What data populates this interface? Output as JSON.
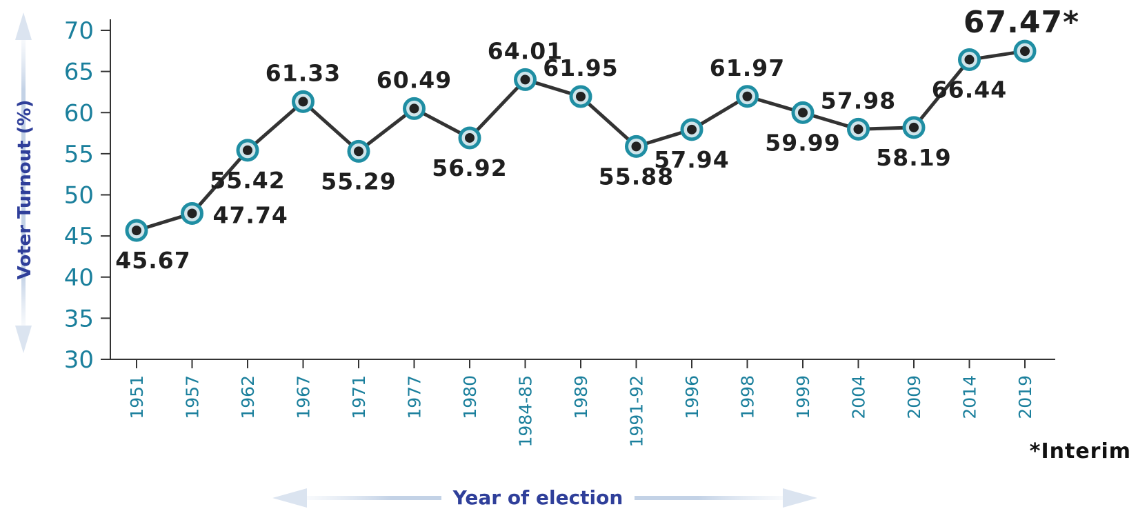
{
  "chart_data": {
    "type": "line",
    "categories": [
      "1951",
      "1957",
      "1962",
      "1967",
      "1971",
      "1977",
      "1980",
      "1984-85",
      "1989",
      "1991-92",
      "1996",
      "1998",
      "1999",
      "2004",
      "2009",
      "2014",
      "2019"
    ],
    "values": [
      45.67,
      47.74,
      55.42,
      61.33,
      55.29,
      60.49,
      56.92,
      64.01,
      61.95,
      55.88,
      57.94,
      61.97,
      59.99,
      57.98,
      58.19,
      66.44,
      67.47
    ],
    "labels": [
      "45.67",
      "47.74",
      "55.42",
      "61.33",
      "55.29",
      "60.49",
      "56.92",
      "64.01",
      "61.95",
      "55.88",
      "57.94",
      "61.97",
      "59.99",
      "57.98",
      "58.19",
      "66.44",
      "67.47*"
    ],
    "label_positions": [
      "below",
      "right",
      "below",
      "above",
      "below",
      "above",
      "below",
      "above",
      "above",
      "below",
      "below",
      "above",
      "below",
      "above",
      "below",
      "below",
      "above"
    ],
    "yticks": [
      "30",
      "35",
      "40",
      "45",
      "50",
      "55",
      "60",
      "65",
      "70"
    ],
    "ylim": [
      30,
      70
    ],
    "xlabel": "Year of election",
    "ylabel": "Voter Turnout (%)",
    "note": "*Interim",
    "grid": false,
    "colors": {
      "line": "#333333",
      "marker_ring": "#1f8ea3",
      "marker_dot": "#222222",
      "tick_text": "#1a7f9c",
      "title_text": "#2f3f9a"
    }
  }
}
